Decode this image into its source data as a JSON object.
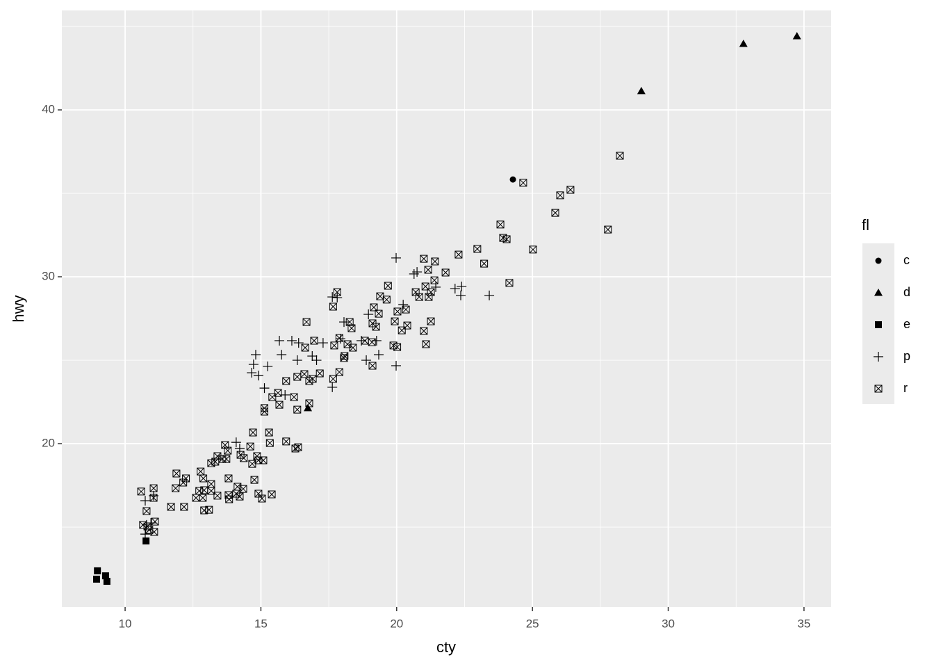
{
  "chart_data": {
    "type": "scatter",
    "x_label": "cty",
    "y_label": "hwy",
    "legend_title": "fl",
    "legend_position": "right",
    "grid": true,
    "xlim": [
      7.67,
      36.0
    ],
    "ylim": [
      10.21,
      45.96
    ],
    "xticks": [
      10,
      15,
      20,
      25,
      30,
      35
    ],
    "yticks": [
      20,
      30,
      40
    ],
    "series": [
      {
        "name": "c",
        "shape": "circle",
        "color": "#000000",
        "x": [
          24.28
        ],
        "y": [
          35.83
        ]
      },
      {
        "name": "d",
        "shape": "triangle",
        "color": "#000000",
        "x": [
          34.74,
          32.77,
          29.01,
          16.73
        ],
        "y": [
          44.42,
          43.96,
          41.13,
          22.13
        ]
      },
      {
        "name": "e",
        "shape": "square",
        "color": "#000000",
        "x": [
          8.98,
          8.95,
          9.28,
          9.33,
          10.77
        ],
        "y": [
          12.38,
          11.88,
          12.08,
          11.75,
          14.17
        ]
      },
      {
        "name": "p",
        "shape": "plus",
        "color": "#000000",
        "x": [
          19.98,
          20.64,
          22.39,
          22.36,
          23.41,
          22.15,
          21.44,
          19.98,
          20.24,
          17.63,
          17.81,
          18.06,
          18.96,
          18.88,
          19.34,
          20.75,
          15.68,
          15.76,
          16.14,
          16.39,
          16.34,
          16.89,
          17.05,
          14.81,
          14.73,
          14.66,
          14.91,
          15.25,
          15.13,
          15.89,
          17.63,
          17.29,
          14.09,
          14.22,
          10.74,
          10.95,
          11.05,
          10.74,
          10.79,
          17.93,
          18.7,
          19.26
        ],
        "y": [
          31.13,
          30.17,
          29.42,
          28.88,
          28.88,
          29.29,
          29.38,
          24.67,
          28.33,
          28.79,
          28.75,
          27.29,
          27.75,
          25.0,
          25.33,
          30.29,
          26.17,
          25.33,
          26.17,
          26.04,
          25.0,
          25.25,
          25.0,
          25.33,
          24.75,
          24.25,
          24.08,
          24.63,
          23.33,
          22.92,
          23.38,
          26.04,
          20.08,
          19.71,
          14.58,
          15.25,
          16.88,
          16.58,
          15.13,
          26.29,
          26.17,
          26.17
        ]
      },
      {
        "name": "r",
        "shape": "boxx",
        "color": "#000000",
        "x": [
          24.66,
          26.02,
          26.4,
          28.22,
          25.84,
          27.78,
          25.02,
          23.82,
          23.92,
          24.05,
          24.15,
          22.97,
          23.22,
          22.28,
          21.8,
          21.41,
          21.0,
          21.16,
          21.06,
          21.26,
          21.18,
          20.7,
          20.83,
          21.08,
          21.0,
          21.26,
          20.34,
          20.03,
          19.93,
          20.19,
          20.39,
          19.68,
          19.39,
          19.16,
          19.34,
          19.11,
          19.24,
          19.11,
          19.88,
          18.83,
          19.09,
          18.27,
          18.34,
          17.81,
          17.66,
          17.89,
          18.19,
          18.39,
          18.08,
          17.7,
          16.96,
          16.68,
          16.63,
          16.6,
          16.91,
          17.17,
          16.78,
          17.66,
          17.89,
          18.06,
          16.34,
          15.93,
          15.63,
          15.42,
          15.68,
          16.22,
          16.34,
          16.78,
          15.13,
          15.13,
          14.71,
          15.3,
          15.33,
          15.93,
          16.27,
          16.37,
          14.61,
          14.25,
          14.86,
          15.09,
          14.91,
          14.68,
          14.37,
          13.68,
          13.78,
          13.58,
          13.73,
          13.4,
          13.32,
          13.17,
          13.81,
          14.76,
          14.14,
          14.35,
          14.09,
          13.81,
          14.22,
          13.83,
          14.91,
          15.04,
          15.4,
          13.4,
          13.17,
          13.17,
          12.91,
          12.78,
          12.88,
          12.61,
          12.86,
          12.73,
          12.91,
          13.09,
          12.14,
          12.24,
          11.89,
          11.86,
          12.17,
          11.69,
          11.05,
          11.05,
          10.59,
          10.79,
          11.1,
          11.07,
          10.66,
          10.89,
          10.82,
          19.63,
          20.02,
          21.39
        ],
        "y": [
          35.63,
          34.88,
          35.21,
          37.25,
          33.83,
          32.83,
          31.63,
          33.13,
          32.33,
          32.25,
          29.63,
          31.67,
          30.79,
          31.33,
          30.25,
          30.92,
          31.08,
          30.42,
          29.42,
          29.08,
          28.79,
          29.08,
          28.79,
          25.96,
          26.75,
          27.33,
          28.04,
          27.92,
          27.33,
          26.79,
          27.08,
          29.46,
          28.83,
          28.17,
          27.79,
          27.21,
          27.0,
          24.67,
          25.88,
          26.17,
          26.08,
          27.29,
          26.92,
          29.08,
          28.21,
          26.33,
          25.96,
          25.75,
          25.25,
          25.88,
          26.17,
          27.29,
          25.75,
          24.17,
          23.88,
          24.21,
          23.75,
          23.88,
          24.29,
          25.13,
          24.0,
          23.75,
          23.04,
          22.79,
          22.33,
          22.79,
          22.04,
          22.42,
          22.13,
          21.92,
          20.67,
          20.67,
          20.04,
          20.13,
          19.71,
          19.79,
          19.83,
          19.33,
          19.25,
          19.0,
          19.0,
          18.79,
          19.13,
          19.92,
          19.58,
          19.08,
          19.08,
          19.25,
          18.92,
          18.83,
          17.92,
          17.83,
          17.42,
          17.29,
          17.0,
          16.92,
          16.83,
          16.67,
          17.0,
          16.71,
          16.96,
          16.88,
          17.58,
          17.17,
          17.21,
          18.33,
          17.92,
          16.75,
          16.75,
          17.17,
          16.0,
          16.04,
          17.67,
          17.92,
          18.21,
          17.33,
          16.21,
          16.21,
          17.33,
          16.75,
          17.13,
          15.96,
          15.33,
          14.71,
          15.13,
          14.83,
          15.04,
          28.63,
          25.79,
          29.79
        ]
      }
    ]
  }
}
